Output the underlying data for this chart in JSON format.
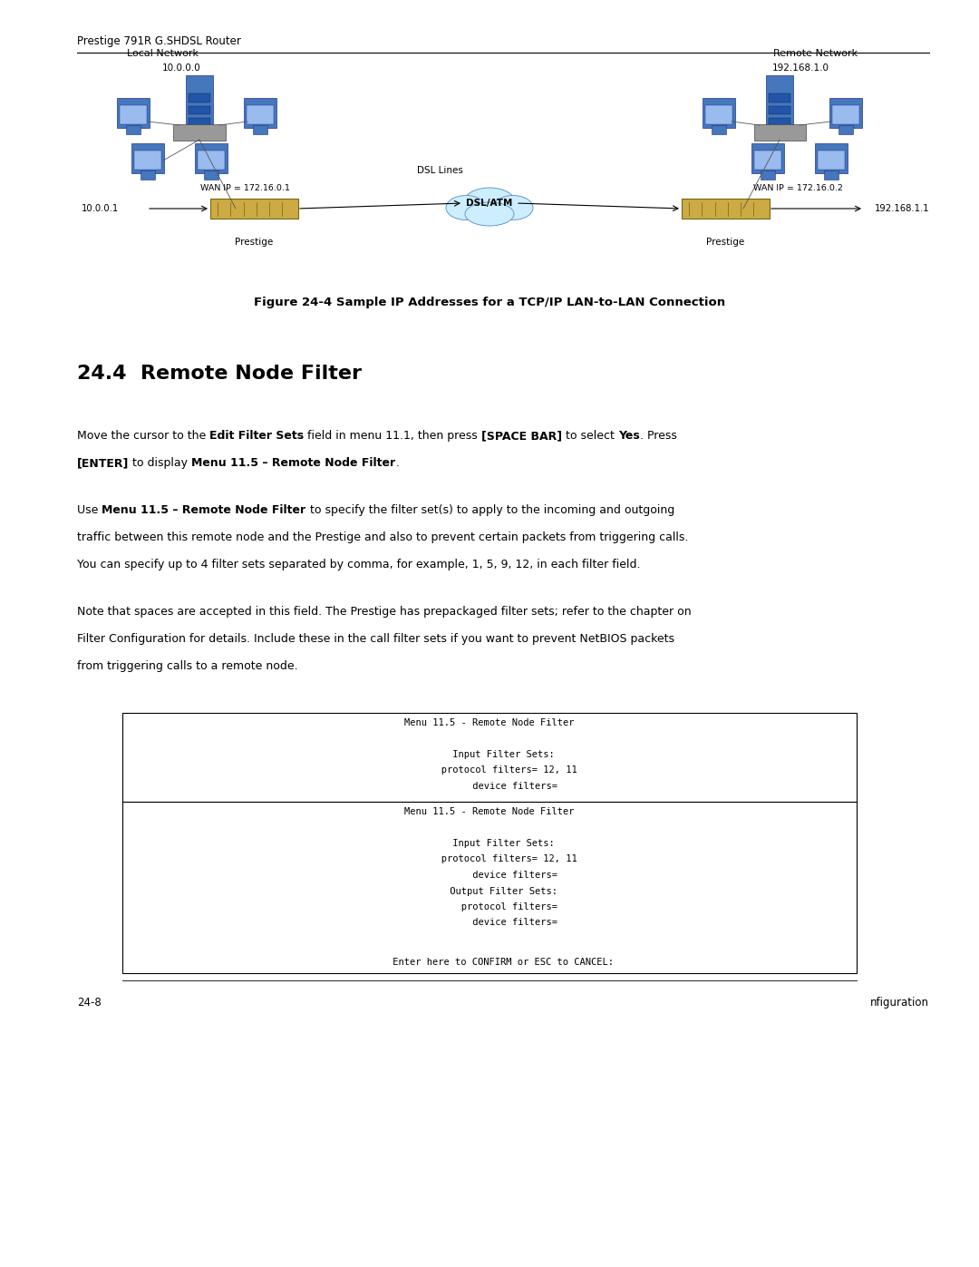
{
  "page_width": 10.8,
  "page_height": 13.97,
  "bg_color": "#ffffff",
  "header_text": "Prestige 791R G.SHDSL Router",
  "figure_caption": "Figure 24-4 Sample IP Addresses for a TCP/IP LAN-to-LAN Connection",
  "section_title": "24.4  Remote Node Filter",
  "box1_lines": [
    "Menu 11.5 - Remote Node Filter",
    "",
    "     Input Filter Sets:",
    "       protocol filters= 12, 11",
    "         device filters="
  ],
  "box2_lines": [
    "Menu 11.5 - Remote Node Filter",
    "",
    "     Input Filter Sets:",
    "       protocol filters= 12, 11",
    "         device filters=",
    "     Output Filter Sets:",
    "       protocol filters=",
    "         device filters="
  ],
  "box2_confirm": "     Enter here to CONFIRM or ESC to CANCEL:",
  "footer_left": "24-8",
  "footer_right": "nfiguration",
  "local_network_label": "Local Network",
  "remote_network_label": "Remote Network",
  "ip_local_top": "10.0.0.0",
  "ip_remote_top": "192.168.1.0",
  "wan_ip_left": "WAN IP = 172.16.0.1",
  "wan_ip_right": "WAN IP = 172.16.0.2",
  "dsl_lines_label": "DSL Lines",
  "dsl_atm_label": "DSL/ATM",
  "ip_left_end": "10.0.0.1",
  "ip_right_end": "192.168.1.1",
  "prestige_left_label": "Prestige",
  "prestige_right_label": "Prestige"
}
